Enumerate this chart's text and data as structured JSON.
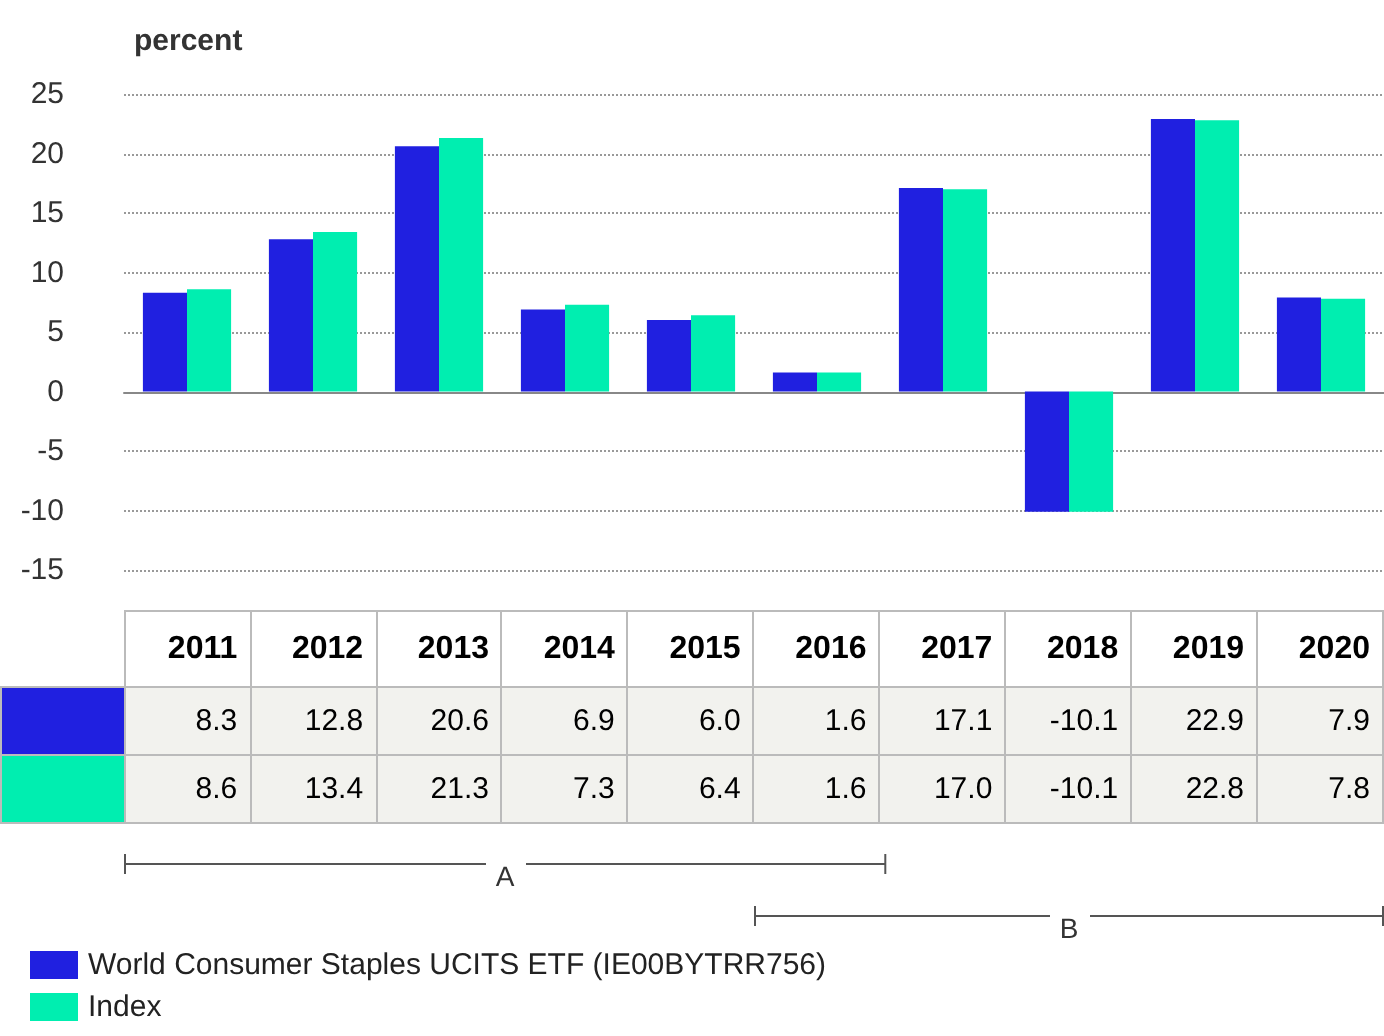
{
  "chart_data": {
    "type": "bar",
    "ylabel": "percent",
    "categories": [
      "2011",
      "2012",
      "2013",
      "2014",
      "2015",
      "2016",
      "2017",
      "2018",
      "2019",
      "2020"
    ],
    "series": [
      {
        "name": "World Consumer Staples UCITS ETF (IE00BYTRR756)",
        "color": "#2020e0",
        "values": [
          8.3,
          12.8,
          20.6,
          6.9,
          6.0,
          1.6,
          17.1,
          -10.1,
          22.9,
          7.9
        ],
        "value_labels": [
          "8.3",
          "12.8",
          "20.6",
          "6.9",
          "6.0",
          "1.6",
          "17.1",
          "-10.1",
          "22.9",
          "7.9"
        ]
      },
      {
        "name": "Index",
        "color": "#00eeb0",
        "values": [
          8.6,
          13.4,
          21.3,
          7.3,
          6.4,
          1.6,
          17.0,
          -10.1,
          22.8,
          7.8
        ],
        "value_labels": [
          "8.6",
          "13.4",
          "21.3",
          "7.3",
          "6.4",
          "1.6",
          "17.0",
          "-10.1",
          "22.8",
          "7.8"
        ]
      }
    ],
    "ylim": [
      -15,
      25
    ],
    "yticks": [
      -15,
      -10,
      -5,
      0,
      5,
      10,
      15,
      20,
      25
    ],
    "grid": "y",
    "legend": "bottom",
    "annotations": [
      "A",
      "B"
    ]
  }
}
